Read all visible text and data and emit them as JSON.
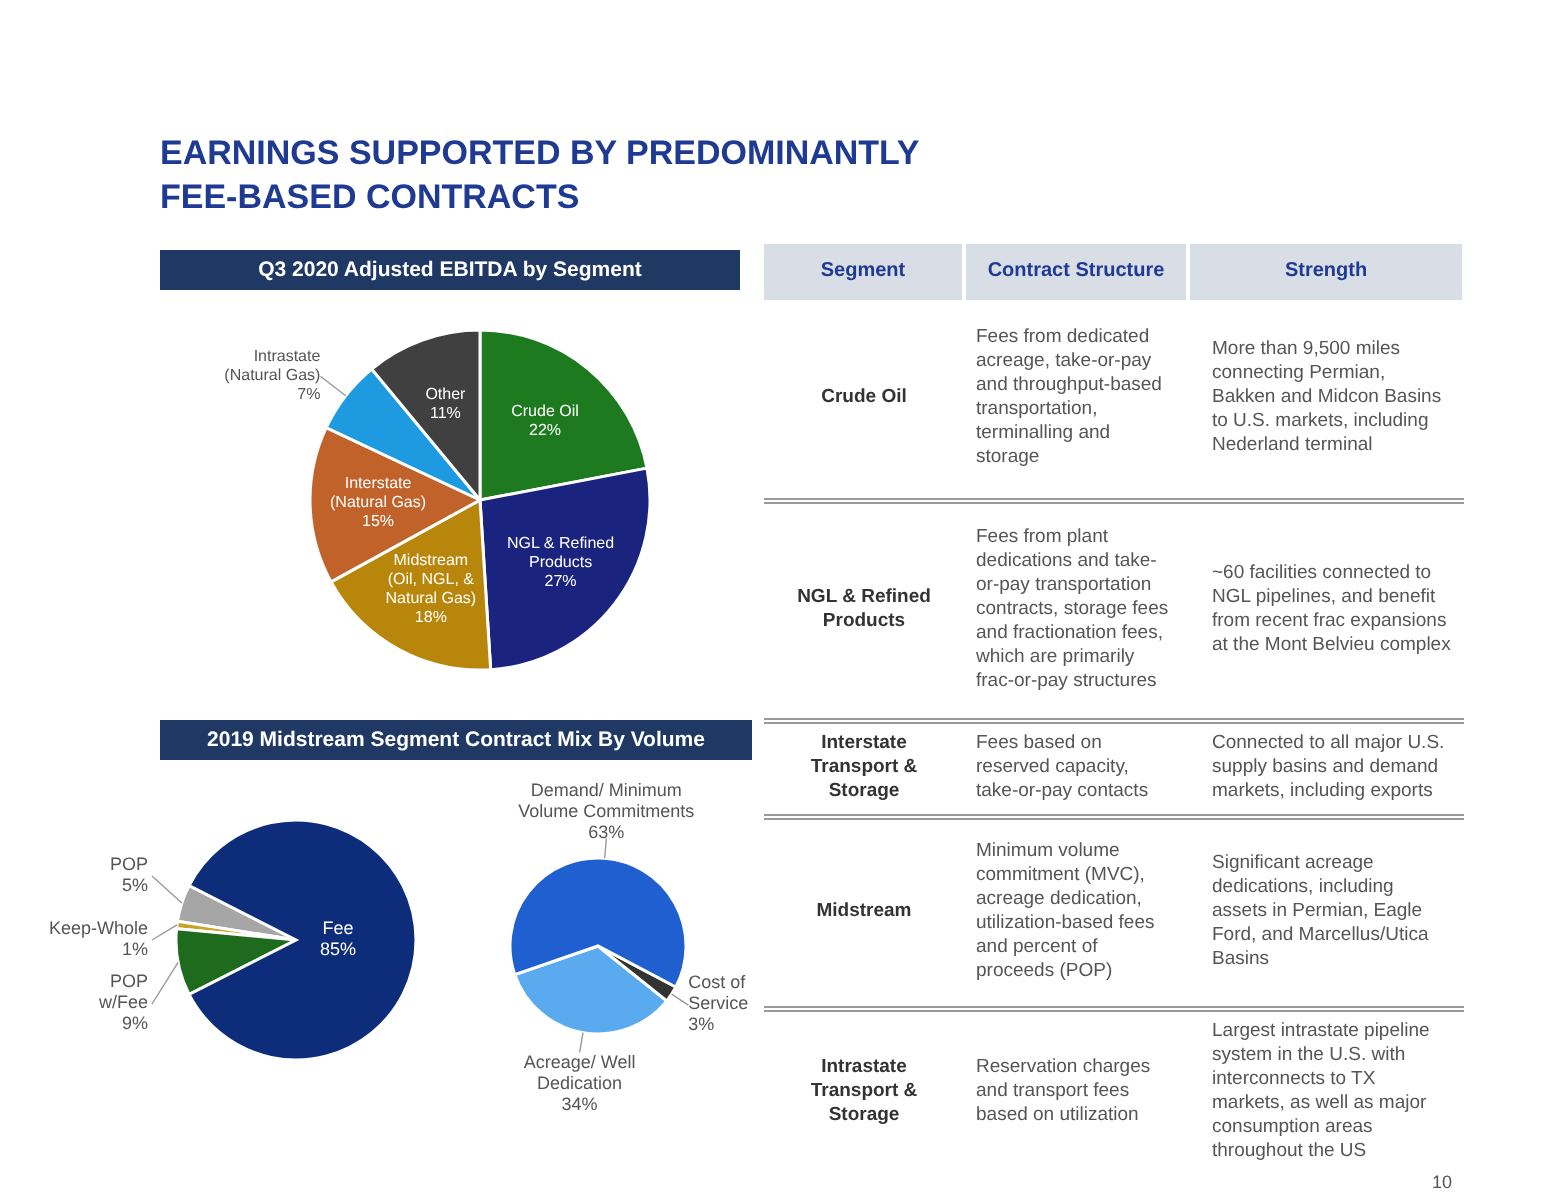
{
  "chart_data": [
    {
      "type": "other",
      "title": "EARNINGS SUPPORTED BY PREDOMINANTLY FEE-BASED CONTRACTS"
    },
    {
      "type": "pie",
      "title": "Q3 2020 Adjusted EBITDA by Segment",
      "categories": [
        "Crude Oil",
        "NGL & Refined Products",
        "Midstream (Oil, NGL, & Natural Gas)",
        "Interstate (Natural Gas)",
        "Intrastate (Natural Gas)",
        "Other"
      ],
      "values": [
        22,
        27,
        18,
        15,
        7,
        11
      ],
      "colors": [
        "#1e7a1e",
        "#1a237e",
        "#b8860b",
        "#c0622a",
        "#1e9be0",
        "#404040"
      ],
      "value_labels": [
        "22%",
        "27%",
        "18%",
        "15%",
        "7%",
        "11%"
      ]
    },
    {
      "type": "pie",
      "title": "2019 Midstream Segment Contract Mix By Volume",
      "categories": [
        "POP",
        "Keep-Whole",
        "POP w/Fee",
        "Fee"
      ],
      "values": [
        5,
        1,
        9,
        85
      ],
      "colors": [
        "#a6a6a6",
        "#c9a227",
        "#1e6b1e",
        "#0d2c7a"
      ],
      "value_labels": [
        "5%",
        "1%",
        "9%",
        "85%"
      ]
    },
    {
      "type": "pie",
      "categories": [
        "Acreage/ Well Dedication",
        "Cost of Service",
        "Demand/ Minimum Volume Commitments"
      ],
      "values": [
        34,
        3,
        63
      ],
      "colors": [
        "#5aaaf0",
        "#333333",
        "#1f5fd0"
      ],
      "value_labels": [
        "34%",
        "3%",
        "63%"
      ]
    },
    {
      "type": "other",
      "categories": [
        "Segment",
        "Contract Structure",
        "Strength"
      ],
      "y_categories": [
        "Crude Oil",
        "NGL & Refined Products",
        "Interstate Transport & Storage",
        "Midstream",
        "Intrastate Transport & Storage"
      ],
      "cell_labels": [
        [
          "Fees from dedicated acreage, take-or-pay and throughput-based transportation, terminalling and storage",
          "More than 9,500 miles connecting Permian, Bakken and Midcon Basins to U.S. markets, including Nederland terminal"
        ],
        [
          "Fees from plant dedications and take-or-pay transportation contracts, storage fees and fractionation fees, which are primarily frac-or-pay structures",
          "~60 facilities connected to NGL pipelines, and benefit from recent frac expansions at the Mont Belvieu complex"
        ],
        [
          "Fees based on reserved capacity, take-or-pay contacts",
          "Connected to all major U.S. supply basins and demand markets, including exports"
        ],
        [
          "Minimum volume commitment (MVC), acreage dedication, utilization-based fees and percent of proceeds (POP)",
          "Significant acreage dedications, including assets in Permian, Eagle Ford, and Marcellus/Utica Basins"
        ],
        [
          "Reservation charges and transport fees based on utilization",
          "Largest intrastate pipeline system in the U.S. with interconnects to TX markets, as well as major consumption areas throughout the US"
        ]
      ],
      "annotations": [
        "10"
      ]
    }
  ]
}
